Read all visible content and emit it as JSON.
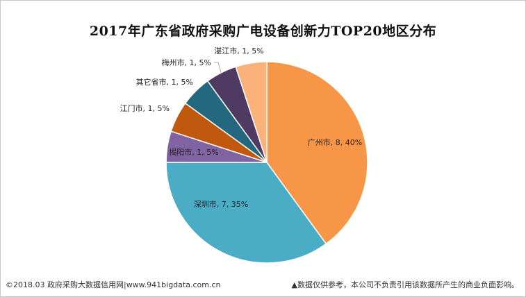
{
  "chart_data": {
    "type": "pie",
    "title": "2017年广东省政府采购广电设备创新力TOP20地区分布",
    "slices": [
      {
        "label": "广州市, 8, 40%",
        "name": "广州市",
        "value": 8,
        "percent": 40,
        "color": "#F79646"
      },
      {
        "label": "深圳市, 7, 35%",
        "name": "深圳市",
        "value": 7,
        "percent": 35,
        "color": "#4BACC6"
      },
      {
        "label": "揭阳市, 1, 5%",
        "name": "揭阳市",
        "value": 1,
        "percent": 5,
        "color": "#8064A2"
      },
      {
        "label": "江门市, 1, 5%",
        "name": "江门市",
        "value": 1,
        "percent": 5,
        "color": "#C0580D"
      },
      {
        "label": "其它省市, 1, 5%",
        "name": "其它省市",
        "value": 1,
        "percent": 5,
        "color": "#23687E"
      },
      {
        "label": "梅州市, 1, 5%",
        "name": "梅州市",
        "value": 1,
        "percent": 5,
        "color": "#4F3A62"
      },
      {
        "label": "湛江市, 1, 5%",
        "name": "湛江市",
        "value": 1,
        "percent": 5,
        "color": "#FAB27A"
      }
    ]
  },
  "footer": {
    "source": "©2018.03 政府采购大数据信用网|www.941bigdata.com.cn",
    "disclaimer": "▲数据仅供参考，本公司不负责引用该数据所产生的商业负面影响。"
  }
}
